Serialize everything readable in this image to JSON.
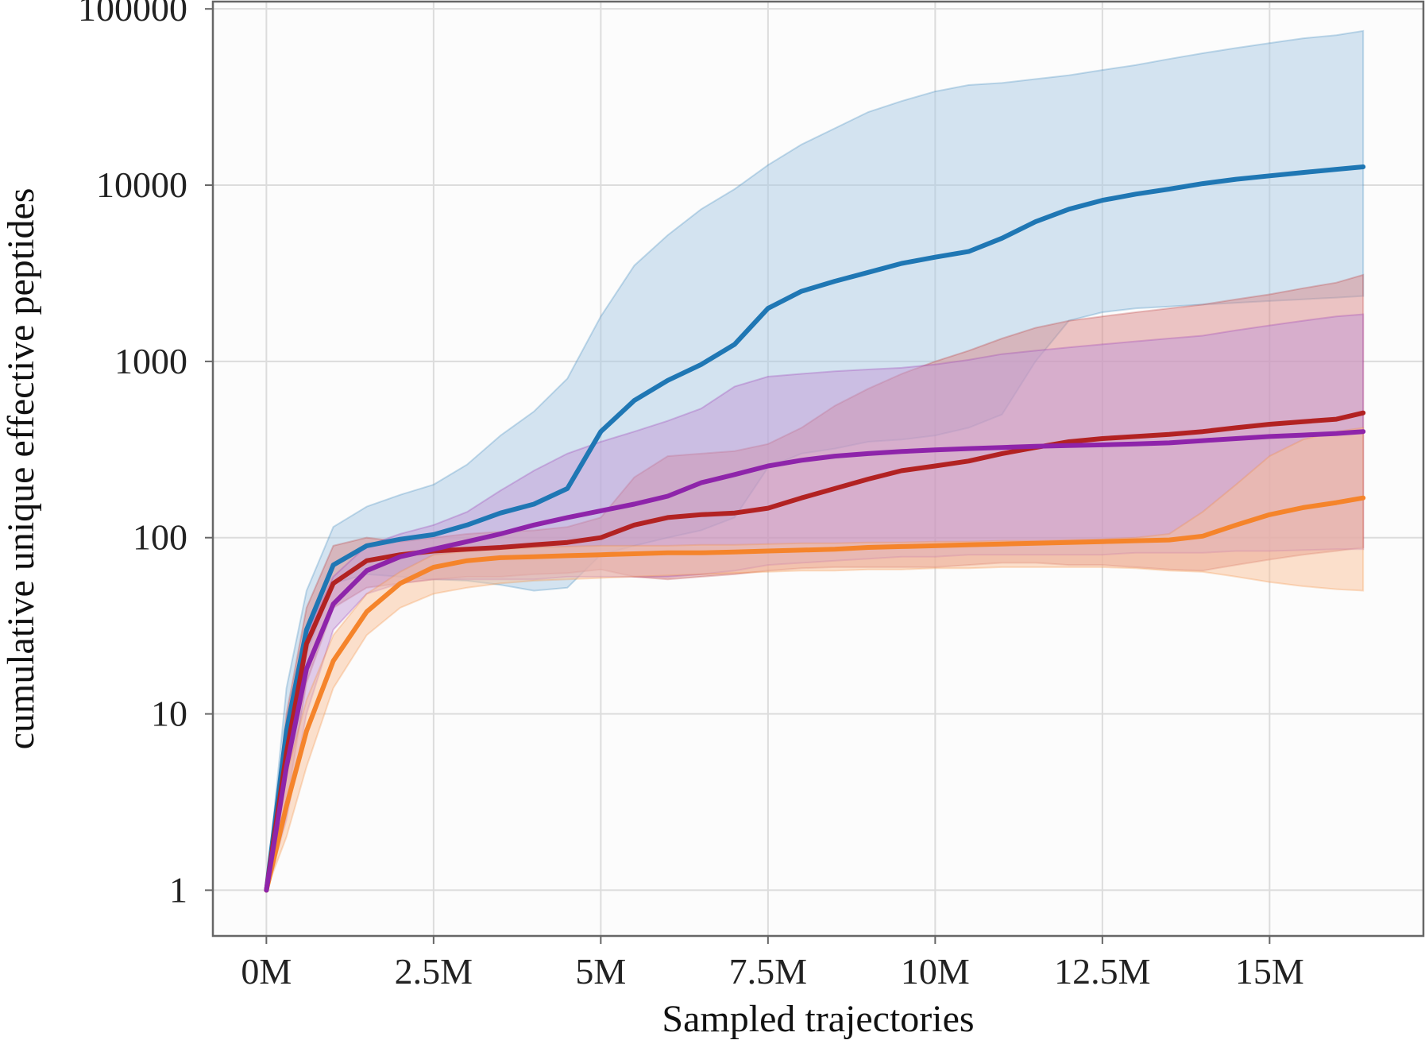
{
  "chart_data": {
    "type": "line",
    "title": "",
    "xlabel": "Sampled trajectories",
    "ylabel": "cumulative unique effective peptides",
    "yscale": "log",
    "xlim": [
      -0.8,
      17.3
    ],
    "ylim": [
      0.55,
      110000
    ],
    "grid": true,
    "x_ticks": [
      0,
      2.5,
      5,
      7.5,
      10,
      12.5,
      15
    ],
    "x_tick_labels": [
      "0M",
      "2.5M",
      "5M",
      "7.5M",
      "10M",
      "12.5M",
      "15M"
    ],
    "y_ticks": [
      1,
      10,
      100,
      1000,
      10000,
      100000
    ],
    "y_tick_labels": [
      "1",
      "10",
      "100",
      "1000",
      "10000",
      "100000"
    ],
    "series": [
      {
        "name": "blue",
        "color": "#1f77b4",
        "band_color": "#a9c9e4",
        "x": [
          0,
          0.3,
          0.6,
          1,
          1.5,
          2,
          2.5,
          3,
          3.5,
          4,
          4.5,
          5,
          5.5,
          6,
          6.5,
          7,
          7.5,
          8,
          8.5,
          9,
          9.5,
          10,
          10.5,
          11,
          11.5,
          12,
          12.5,
          13,
          13.5,
          14,
          14.5,
          15,
          15.5,
          16,
          16.4
        ],
        "mean": [
          1,
          8,
          30,
          70,
          90,
          98,
          104,
          118,
          138,
          155,
          190,
          400,
          600,
          780,
          960,
          1250,
          2000,
          2500,
          2850,
          3200,
          3600,
          3900,
          4200,
          5000,
          6200,
          7300,
          8200,
          8900,
          9500,
          10200,
          10800,
          11300,
          11800,
          12300,
          12700
        ],
        "lower": [
          1,
          5,
          22,
          55,
          62,
          60,
          58,
          57,
          54,
          50,
          52,
          80,
          90,
          100,
          110,
          130,
          250,
          300,
          320,
          350,
          360,
          380,
          420,
          500,
          1000,
          1700,
          1900,
          2000,
          2050,
          2100,
          2150,
          2200,
          2250,
          2300,
          2350
        ],
        "upper": [
          1,
          14,
          50,
          115,
          150,
          175,
          200,
          260,
          380,
          520,
          800,
          1800,
          3500,
          5200,
          7300,
          9500,
          13000,
          17000,
          21000,
          26000,
          30000,
          34000,
          37000,
          38000,
          40000,
          42000,
          45000,
          48000,
          52000,
          56000,
          60000,
          64000,
          68000,
          71000,
          75000
        ]
      },
      {
        "name": "red",
        "color": "#b22222",
        "band_color": "#d98a8a",
        "x": [
          0,
          0.3,
          0.6,
          1,
          1.5,
          2,
          2.5,
          3,
          3.5,
          4,
          4.5,
          5,
          5.5,
          6,
          6.5,
          7,
          7.5,
          8,
          8.5,
          9,
          9.5,
          10,
          10.5,
          11,
          11.5,
          12,
          12.5,
          13,
          13.5,
          14,
          14.5,
          15,
          15.5,
          16,
          16.4
        ],
        "mean": [
          1,
          6,
          25,
          55,
          74,
          80,
          84,
          86,
          88,
          91,
          94,
          100,
          118,
          130,
          135,
          138,
          147,
          168,
          190,
          215,
          240,
          255,
          272,
          300,
          325,
          350,
          365,
          375,
          385,
          400,
          420,
          440,
          455,
          470,
          510
        ],
        "lower": [
          1,
          3,
          15,
          40,
          52,
          55,
          58,
          60,
          60,
          62,
          63,
          66,
          60,
          58,
          60,
          62,
          65,
          67,
          68,
          68,
          68,
          68,
          70,
          72,
          72,
          70,
          70,
          68,
          66,
          65,
          70,
          75,
          80,
          84,
          88
        ],
        "upper": [
          1,
          10,
          40,
          90,
          100,
          95,
          100,
          105,
          108,
          110,
          115,
          130,
          220,
          290,
          300,
          310,
          340,
          420,
          560,
          700,
          850,
          1000,
          1150,
          1350,
          1550,
          1700,
          1800,
          1900,
          2000,
          2100,
          2250,
          2400,
          2600,
          2800,
          3100
        ]
      },
      {
        "name": "purple",
        "color": "#8e24aa",
        "band_color": "#c49ad6",
        "x": [
          0,
          0.3,
          0.6,
          1,
          1.5,
          2,
          2.5,
          3,
          3.5,
          4,
          4.5,
          5,
          5.5,
          6,
          6.5,
          7,
          7.5,
          8,
          8.5,
          9,
          9.5,
          10,
          10.5,
          11,
          11.5,
          12,
          12.5,
          13,
          13.5,
          14,
          14.5,
          15,
          15.5,
          16,
          16.4
        ],
        "mean": [
          1,
          5,
          18,
          42,
          65,
          78,
          86,
          95,
          105,
          118,
          130,
          142,
          155,
          172,
          205,
          228,
          255,
          275,
          290,
          300,
          308,
          315,
          320,
          325,
          330,
          333,
          336,
          340,
          345,
          355,
          365,
          375,
          382,
          390,
          400
        ],
        "lower": [
          1,
          2.5,
          10,
          30,
          48,
          55,
          58,
          58,
          58,
          58,
          60,
          60,
          60,
          60,
          62,
          65,
          70,
          72,
          74,
          76,
          78,
          78,
          80,
          80,
          80,
          80,
          80,
          82,
          82,
          82,
          84,
          84,
          85,
          86,
          86
        ],
        "upper": [
          1,
          8,
          28,
          60,
          90,
          105,
          118,
          140,
          185,
          240,
          300,
          350,
          400,
          460,
          540,
          720,
          820,
          850,
          880,
          900,
          920,
          960,
          1020,
          1100,
          1150,
          1200,
          1250,
          1300,
          1350,
          1400,
          1500,
          1600,
          1700,
          1800,
          1850
        ]
      },
      {
        "name": "orange",
        "color": "#f5842b",
        "band_color": "#f9c29a",
        "x": [
          0,
          0.3,
          0.6,
          1,
          1.5,
          2,
          2.5,
          3,
          3.5,
          4,
          4.5,
          5,
          5.5,
          6,
          6.5,
          7,
          7.5,
          8,
          8.5,
          9,
          9.5,
          10,
          10.5,
          11,
          11.5,
          12,
          12.5,
          13,
          13.5,
          14,
          14.5,
          15,
          15.5,
          16,
          16.4
        ],
        "mean": [
          1,
          3,
          8,
          20,
          38,
          55,
          68,
          74,
          77,
          78,
          79,
          80,
          81,
          82,
          82,
          83,
          84,
          85,
          86,
          88,
          89,
          90,
          91,
          92,
          93,
          94,
          95,
          96,
          97,
          102,
          118,
          135,
          148,
          158,
          168
        ],
        "lower": [
          1,
          2,
          5,
          14,
          28,
          40,
          48,
          52,
          55,
          57,
          58,
          59,
          60,
          61,
          62,
          63,
          64,
          65,
          65,
          66,
          66,
          67,
          67,
          68,
          68,
          68,
          68,
          67,
          65,
          64,
          60,
          56,
          53,
          51,
          50
        ],
        "upper": [
          1,
          4.5,
          12,
          28,
          48,
          64,
          80,
          84,
          86,
          88,
          89,
          90,
          90,
          90,
          91,
          91,
          92,
          93,
          93,
          94,
          94,
          95,
          95,
          96,
          96,
          97,
          98,
          100,
          105,
          140,
          200,
          290,
          360,
          400,
          420
        ]
      }
    ]
  }
}
